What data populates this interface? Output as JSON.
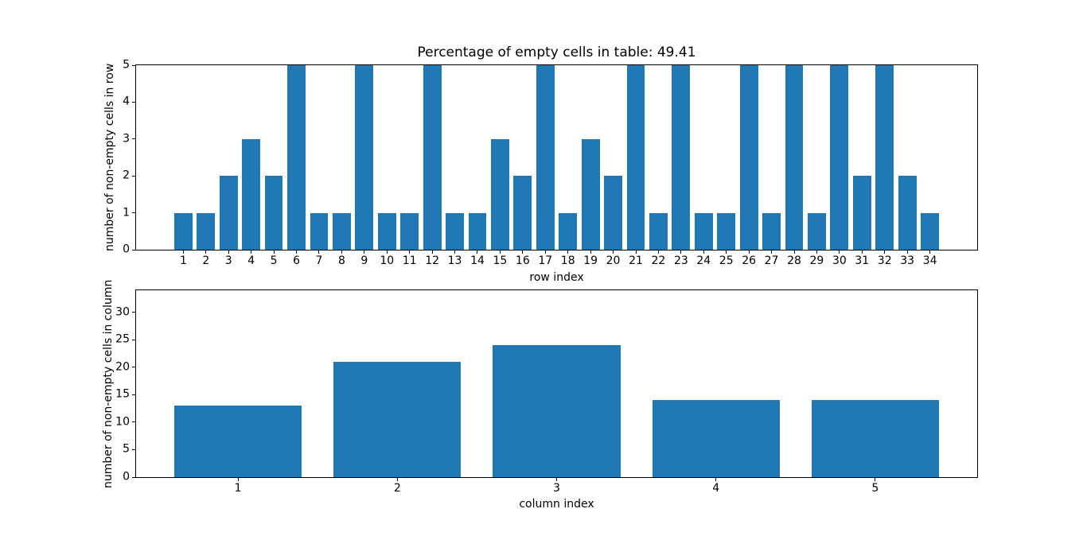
{
  "figure": {
    "background": "#ffffff",
    "bar_color": "#1f77b4",
    "spine_color": "#000000"
  },
  "chart_data": [
    {
      "type": "bar",
      "title": "Percentage of empty cells in table: 49.41",
      "xlabel": "row index",
      "ylabel": "number of non-empty cells in row",
      "categories": [
        1,
        2,
        3,
        4,
        5,
        6,
        7,
        8,
        9,
        10,
        11,
        12,
        13,
        14,
        15,
        16,
        17,
        18,
        19,
        20,
        21,
        22,
        23,
        24,
        25,
        26,
        27,
        28,
        29,
        30,
        31,
        32,
        33,
        34
      ],
      "values": [
        1,
        1,
        2,
        3,
        2,
        5,
        1,
        1,
        5,
        1,
        1,
        5,
        1,
        1,
        3,
        2,
        5,
        1,
        3,
        2,
        5,
        1,
        5,
        1,
        1,
        5,
        1,
        5,
        1,
        5,
        2,
        5,
        2,
        1
      ],
      "bar_width": 0.8,
      "xlim": [
        -1.09,
        36.09
      ],
      "ylim": [
        0,
        5
      ],
      "yticks": [
        0,
        1,
        2,
        3,
        4,
        5
      ],
      "grid": false,
      "legend": null
    },
    {
      "type": "bar",
      "title": "",
      "xlabel": "column index",
      "ylabel": "number of non-empty cells in column",
      "categories": [
        1,
        2,
        3,
        4,
        5
      ],
      "values": [
        13,
        21,
        24,
        14,
        14
      ],
      "bar_width": 0.8,
      "xlim": [
        0.36,
        5.64
      ],
      "ylim": [
        0,
        34
      ],
      "yticks": [
        0,
        5,
        10,
        15,
        20,
        25,
        30
      ],
      "grid": false,
      "legend": null
    }
  ]
}
